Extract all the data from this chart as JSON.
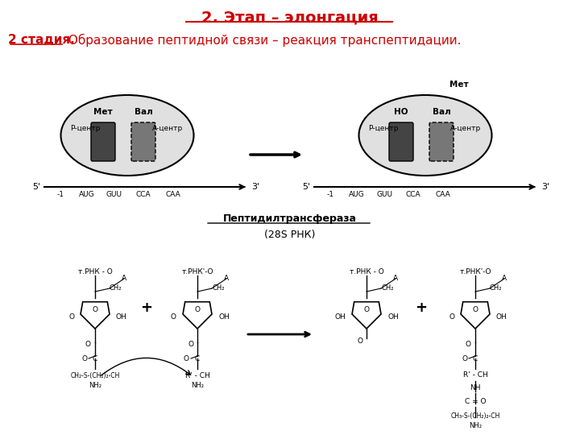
{
  "title1": "2. Этап – элонгация",
  "title2_bold": "2 стадия.",
  "title2_rest": " Образование пептидной связи – реакция транспептидации.",
  "enzyme_line1": "Пептидилтрансфераза",
  "enzyme_line2": "(28S РНК)",
  "bg_color": "#ffffff",
  "title1_color": "#cc0000",
  "title2_color": "#cc0000",
  "text_color": "#000000"
}
